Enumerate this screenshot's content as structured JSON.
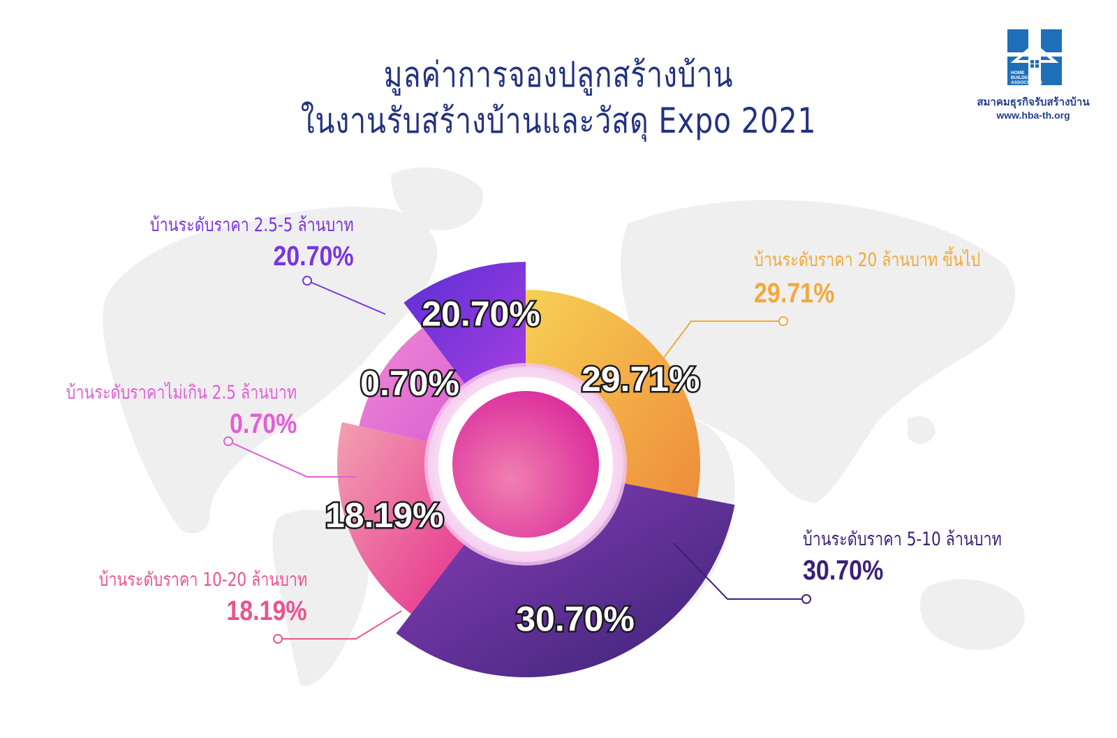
{
  "header": {
    "title_line1": "มูลค่าการจองปลูกสร้างบ้าน",
    "title_line2": "ในงานรับสร้างบ้านและวัสดุ Expo 2021"
  },
  "logo": {
    "icon": "house-logo-icon",
    "mark_text": "HOME BUILDER ASSOCIATION",
    "org_name": "สมาคมธุรกิจรับสร้างบ้าน",
    "url": "www.hba-th.org",
    "color": "#1f6fb8"
  },
  "chart_data": {
    "type": "pie",
    "title": "มูลค่าการจองปลูกสร้างบ้าน ในงานรับสร้างบ้านและวัสดุ Expo 2021",
    "unit": "%",
    "slices": [
      {
        "label": "บ้านระดับราคา 20 ล้านบาท ขึ้นไป",
        "value": 29.71,
        "value_label": "29.71%",
        "colors": [
          "#f7d054",
          "#ee8a3a"
        ]
      },
      {
        "label": "บ้านระดับราคา 5-10 ล้านบาท",
        "value": 30.7,
        "value_label": "30.70%",
        "colors": [
          "#8a3fb8",
          "#3b2377"
        ]
      },
      {
        "label": "บ้านระดับราคา 10-20 ล้านบาท",
        "value": 18.19,
        "value_label": "18.19%",
        "colors": [
          "#f2a1b2",
          "#e6308c"
        ]
      },
      {
        "label": "บ้านระดับราคาไม่เกิน 2.5 ล้านบาท",
        "value": 0.7,
        "value_label": "0.70%",
        "colors": [
          "#f08bd8",
          "#d95ed0"
        ]
      },
      {
        "label": "บ้านระดับราคา 2.5-5 ล้านบาท",
        "value": 20.7,
        "value_label": "20.70%",
        "colors": [
          "#5a2fd6",
          "#a53ee0"
        ]
      }
    ],
    "label_colors": {
      "20_plus": "#f2a93b",
      "5_10": "#3b1f7a",
      "10_20": "#e8558f",
      "under_2_5": "#e25ed6",
      "2_5_5": "#7a35e0"
    },
    "legend": "callouts"
  }
}
